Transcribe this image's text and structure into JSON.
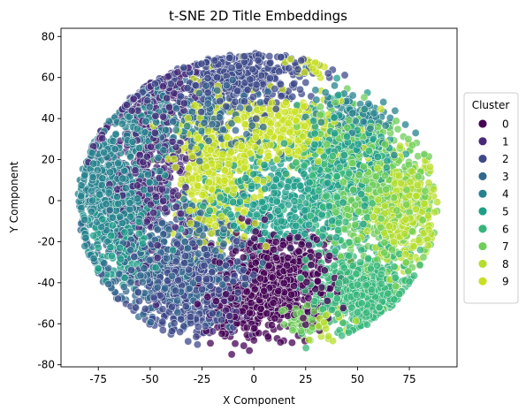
{
  "chart_data": {
    "type": "scatter",
    "title": "t-SNE 2D Title Embeddings",
    "xlabel": "X Component",
    "ylabel": "Y Component",
    "xlim": [
      -93,
      98
    ],
    "ylim": [
      -81,
      84
    ],
    "xticks": [
      -75,
      -50,
      -25,
      0,
      25,
      50,
      75
    ],
    "yticks": [
      -80,
      -60,
      -40,
      -20,
      0,
      20,
      40,
      60,
      80
    ],
    "grid": false,
    "legend": {
      "title": "Cluster",
      "placement": "right-outside",
      "entries": [
        "0",
        "1",
        "2",
        "3",
        "4",
        "5",
        "6",
        "7",
        "8",
        "9"
      ]
    },
    "colors": [
      "#440154",
      "#482878",
      "#3e4989",
      "#31688e",
      "#26828e",
      "#1f9e89",
      "#35b779",
      "#6ece58",
      "#b5de2b",
      "#c8e020"
    ],
    "marker_opacity": 0.75,
    "edge_color": "#ffffff",
    "series": [
      {
        "name": "0",
        "clusters": [
          {
            "x": 12,
            "y": -40,
            "sx": 12,
            "sy": 11,
            "n": 700
          },
          {
            "x": -8,
            "y": -55,
            "sx": 8,
            "sy": 6,
            "n": 120
          }
        ]
      },
      {
        "name": "1",
        "clusters": [
          {
            "x": -48,
            "y": 10,
            "sx": 10,
            "sy": 18,
            "n": 350
          },
          {
            "x": -45,
            "y": 55,
            "sx": 10,
            "sy": 8,
            "n": 200
          },
          {
            "x": -80,
            "y": 30,
            "sx": 5,
            "sy": 5,
            "n": 50
          },
          {
            "x": -15,
            "y": -55,
            "sx": 6,
            "sy": 5,
            "n": 40
          }
        ]
      },
      {
        "name": "2",
        "clusters": [
          {
            "x": -30,
            "y": -40,
            "sx": 15,
            "sy": 12,
            "n": 500
          },
          {
            "x": -10,
            "y": 60,
            "sx": 18,
            "sy": 8,
            "n": 400
          },
          {
            "x": -60,
            "y": 60,
            "sx": 8,
            "sy": 6,
            "n": 120
          }
        ]
      },
      {
        "name": "3",
        "clusters": [
          {
            "x": -40,
            "y": -30,
            "sx": 18,
            "sy": 14,
            "n": 450
          },
          {
            "x": -20,
            "y": 40,
            "sx": 14,
            "sy": 10,
            "n": 200
          }
        ]
      },
      {
        "name": "4",
        "clusters": [
          {
            "x": -68,
            "y": 5,
            "sx": 12,
            "sy": 16,
            "n": 550
          },
          {
            "x": -50,
            "y": 40,
            "sx": 10,
            "sy": 10,
            "n": 150
          },
          {
            "x": 45,
            "y": 40,
            "sx": 10,
            "sy": 7,
            "n": 120
          }
        ]
      },
      {
        "name": "5",
        "clusters": [
          {
            "x": 10,
            "y": 0,
            "sx": 18,
            "sy": 14,
            "n": 450
          },
          {
            "x": 45,
            "y": 20,
            "sx": 12,
            "sy": 12,
            "n": 250
          },
          {
            "x": -65,
            "y": -20,
            "sx": 10,
            "sy": 10,
            "n": 150
          }
        ]
      },
      {
        "name": "6",
        "clusters": [
          {
            "x": 52,
            "y": -45,
            "sx": 12,
            "sy": 10,
            "n": 500
          },
          {
            "x": 40,
            "y": 5,
            "sx": 10,
            "sy": 14,
            "n": 200
          }
        ]
      },
      {
        "name": "7",
        "clusters": [
          {
            "x": 60,
            "y": 0,
            "sx": 12,
            "sy": 18,
            "n": 450
          },
          {
            "x": 40,
            "y": 30,
            "sx": 8,
            "sy": 8,
            "n": 100
          },
          {
            "x": 25,
            "y": -58,
            "sx": 6,
            "sy": 5,
            "n": 60
          }
        ]
      },
      {
        "name": "8",
        "clusters": [
          {
            "x": 72,
            "y": -5,
            "sx": 8,
            "sy": 12,
            "n": 350
          },
          {
            "x": 35,
            "y": -60,
            "sx": 4,
            "sy": 4,
            "n": 30
          }
        ]
      },
      {
        "name": "9",
        "clusters": [
          {
            "x": -18,
            "y": 15,
            "sx": 10,
            "sy": 18,
            "n": 450
          },
          {
            "x": 15,
            "y": 35,
            "sx": 14,
            "sy": 8,
            "n": 300
          },
          {
            "x": 25,
            "y": 65,
            "sx": 5,
            "sy": 4,
            "n": 30
          }
        ]
      }
    ]
  }
}
